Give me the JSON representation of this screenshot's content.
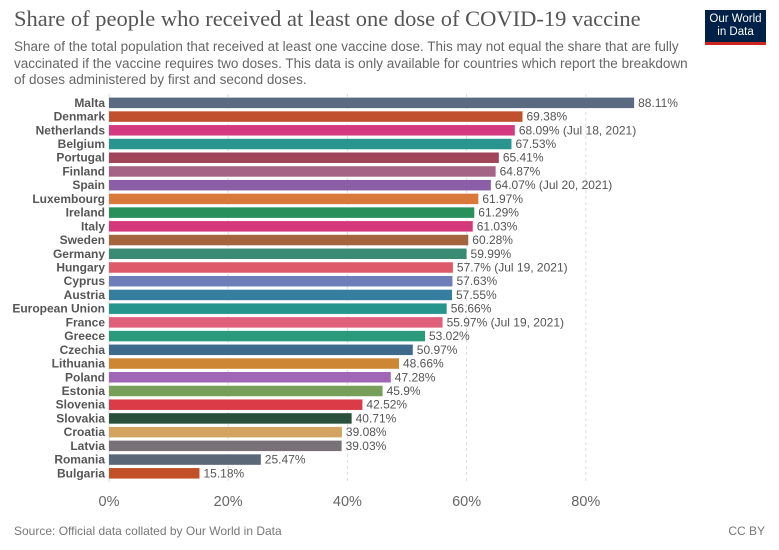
{
  "header": {
    "title": "Share of people who received at least one dose of COVID-19 vaccine",
    "subtitle": "Share of the total population that received at least one vaccine dose. This may not equal the share that are fully vaccinated if the vaccine requires two doses. This data is only available for countries which report the breakdown of doses administered by first and second doses.",
    "logo_line1": "Our World",
    "logo_line2": "in Data"
  },
  "footer": {
    "source": "Source: Official data collated by Our World in Data",
    "license": "CC BY"
  },
  "chart_data": {
    "type": "bar",
    "orientation": "horizontal",
    "xlim": [
      0,
      90
    ],
    "x_ticks": [
      "0%",
      "20%",
      "40%",
      "60%",
      "80%"
    ],
    "x_tick_values": [
      0,
      20,
      40,
      60,
      80
    ],
    "grid": "vertical dashed",
    "rows": [
      {
        "label": "Malta",
        "value": 88.11,
        "value_label": "88.11%",
        "color": "#596a81"
      },
      {
        "label": "Denmark",
        "value": 69.38,
        "value_label": "69.38%",
        "color": "#c1502e"
      },
      {
        "label": "Netherlands",
        "value": 68.09,
        "value_label": "68.09% (Jul 18, 2021)",
        "color": "#d43a80"
      },
      {
        "label": "Belgium",
        "value": 67.53,
        "value_label": "67.53%",
        "color": "#2a958e"
      },
      {
        "label": "Portugal",
        "value": 65.41,
        "value_label": "65.41%",
        "color": "#a1465a"
      },
      {
        "label": "Finland",
        "value": 64.87,
        "value_label": "64.87%",
        "color": "#a56385"
      },
      {
        "label": "Spain",
        "value": 64.07,
        "value_label": "64.07% (Jul 20, 2021)",
        "color": "#8a5fa7"
      },
      {
        "label": "Luxembourg",
        "value": 61.97,
        "value_label": "61.97%",
        "color": "#d8783a"
      },
      {
        "label": "Ireland",
        "value": 61.29,
        "value_label": "61.29%",
        "color": "#27905b"
      },
      {
        "label": "Italy",
        "value": 61.03,
        "value_label": "61.03%",
        "color": "#d5397b"
      },
      {
        "label": "Sweden",
        "value": 60.28,
        "value_label": "60.28%",
        "color": "#a4643e"
      },
      {
        "label": "Germany",
        "value": 59.99,
        "value_label": "59.99%",
        "color": "#3b8a74"
      },
      {
        "label": "Hungary",
        "value": 57.7,
        "value_label": "57.7% (Jul 19, 2021)",
        "color": "#de5a6a"
      },
      {
        "label": "Cyprus",
        "value": 57.63,
        "value_label": "57.63%",
        "color": "#6d7eb8"
      },
      {
        "label": "Austria",
        "value": 57.55,
        "value_label": "57.55%",
        "color": "#357ea0"
      },
      {
        "label": "European Union",
        "value": 56.66,
        "value_label": "56.66%",
        "color": "#26958c"
      },
      {
        "label": "France",
        "value": 55.97,
        "value_label": "55.97% (Jul 19, 2021)",
        "color": "#e0607b"
      },
      {
        "label": "Greece",
        "value": 53.02,
        "value_label": "53.02%",
        "color": "#2a9a7a"
      },
      {
        "label": "Czechia",
        "value": 50.97,
        "value_label": "50.97%",
        "color": "#3e6a8c"
      },
      {
        "label": "Lithuania",
        "value": 48.66,
        "value_label": "48.66%",
        "color": "#cd8633"
      },
      {
        "label": "Poland",
        "value": 47.28,
        "value_label": "47.28%",
        "color": "#a166b5"
      },
      {
        "label": "Estonia",
        "value": 45.9,
        "value_label": "45.9%",
        "color": "#789f5a"
      },
      {
        "label": "Slovenia",
        "value": 42.52,
        "value_label": "42.52%",
        "color": "#db3a47"
      },
      {
        "label": "Slovakia",
        "value": 40.71,
        "value_label": "40.71%",
        "color": "#28503a"
      },
      {
        "label": "Croatia",
        "value": 39.08,
        "value_label": "39.08%",
        "color": "#d2a45f"
      },
      {
        "label": "Latvia",
        "value": 39.03,
        "value_label": "39.03%",
        "color": "#787178"
      },
      {
        "label": "Romania",
        "value": 25.47,
        "value_label": "25.47%",
        "color": "#5a6777"
      },
      {
        "label": "Bulgaria",
        "value": 15.18,
        "value_label": "15.18%",
        "color": "#c14f27"
      }
    ]
  }
}
